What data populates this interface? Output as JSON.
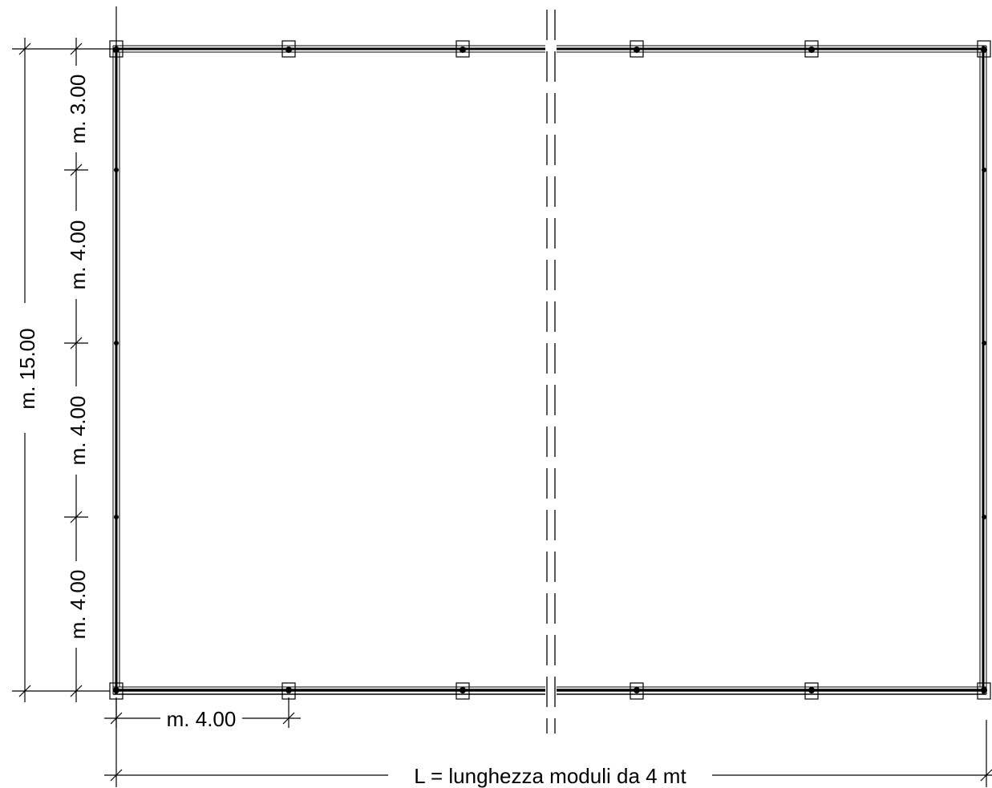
{
  "drawing": {
    "overall_width_label": "L = lunghezza moduli da 4 mt",
    "overall_depth_label": "m. 15.00",
    "module_width_label": "m. 4.00",
    "vertical_segments": [
      {
        "label": "m. 3.00",
        "length_m": 3.0
      },
      {
        "label": "m. 4.00",
        "length_m": 4.0
      },
      {
        "label": "m. 4.00",
        "length_m": 4.0
      },
      {
        "label": "m. 4.00",
        "length_m": 4.0
      }
    ],
    "columns_per_long_side": 6,
    "columns_per_short_side": 5,
    "has_break_line": true,
    "line_color": "#000000",
    "background_color": "#ffffff"
  }
}
